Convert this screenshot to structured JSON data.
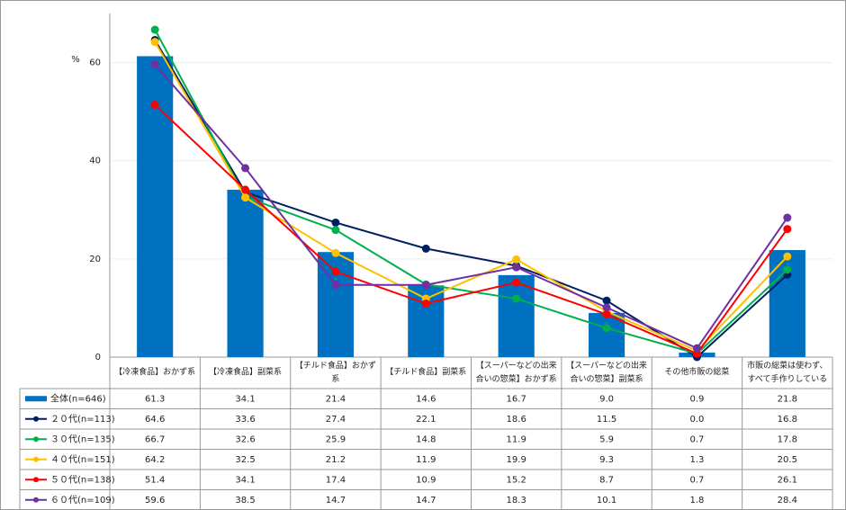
{
  "chart_data": {
    "type": "combo",
    "ylabel": "%",
    "categories": [
      "【冷凍食品】おかず系",
      "【冷凍食品】副菜系",
      "【チルド食品】おかず系",
      "【チルド食品】副菜系",
      "【スーパーなどの出来合いの惣菜】おかず系",
      "【スーパーなどの出来合いの惣菜】副菜系",
      "その他市販の総菜",
      "市販の総菜は使わず、すべて手作りしている"
    ],
    "ylim": [
      0,
      70
    ],
    "yticks": [
      0,
      20,
      40,
      60
    ],
    "grid": true,
    "series": [
      {
        "name": "全体(n=646)",
        "type": "bar",
        "color": "#0070c0",
        "values": [
          61.3,
          34.1,
          21.4,
          14.6,
          16.7,
          9.0,
          0.9,
          21.8
        ],
        "value_labels": [
          "61.3",
          "34.1",
          "21.4",
          "14.6",
          "16.7",
          "9.0",
          "0.9",
          "21.8"
        ]
      },
      {
        "name": "２０代(n=113)",
        "type": "line",
        "color": "#002060",
        "values": [
          64.6,
          33.6,
          27.4,
          22.1,
          18.6,
          11.5,
          0.0,
          16.8
        ],
        "value_labels": [
          "64.6",
          "33.6",
          "27.4",
          "22.1",
          "18.6",
          "11.5",
          "0.0",
          "16.8"
        ]
      },
      {
        "name": "３０代(n=135)",
        "type": "line",
        "color": "#00b050",
        "values": [
          66.7,
          32.6,
          25.9,
          14.8,
          11.9,
          5.9,
          0.7,
          17.8
        ]
      },
      {
        "name": "４０代(n=151)",
        "type": "line",
        "color": "#ffc000",
        "values": [
          64.2,
          32.5,
          21.2,
          11.9,
          19.9,
          9.3,
          1.3,
          20.5
        ]
      },
      {
        "name": "５０代(n=138)",
        "type": "line",
        "color": "#ff0000",
        "values": [
          51.4,
          34.1,
          17.4,
          10.9,
          15.2,
          8.7,
          0.7,
          26.1
        ]
      },
      {
        "name": "６０代(n=109)",
        "type": "line",
        "color": "#7030a0",
        "values": [
          59.6,
          38.5,
          14.7,
          14.7,
          18.3,
          10.1,
          1.8,
          28.4
        ]
      }
    ]
  }
}
